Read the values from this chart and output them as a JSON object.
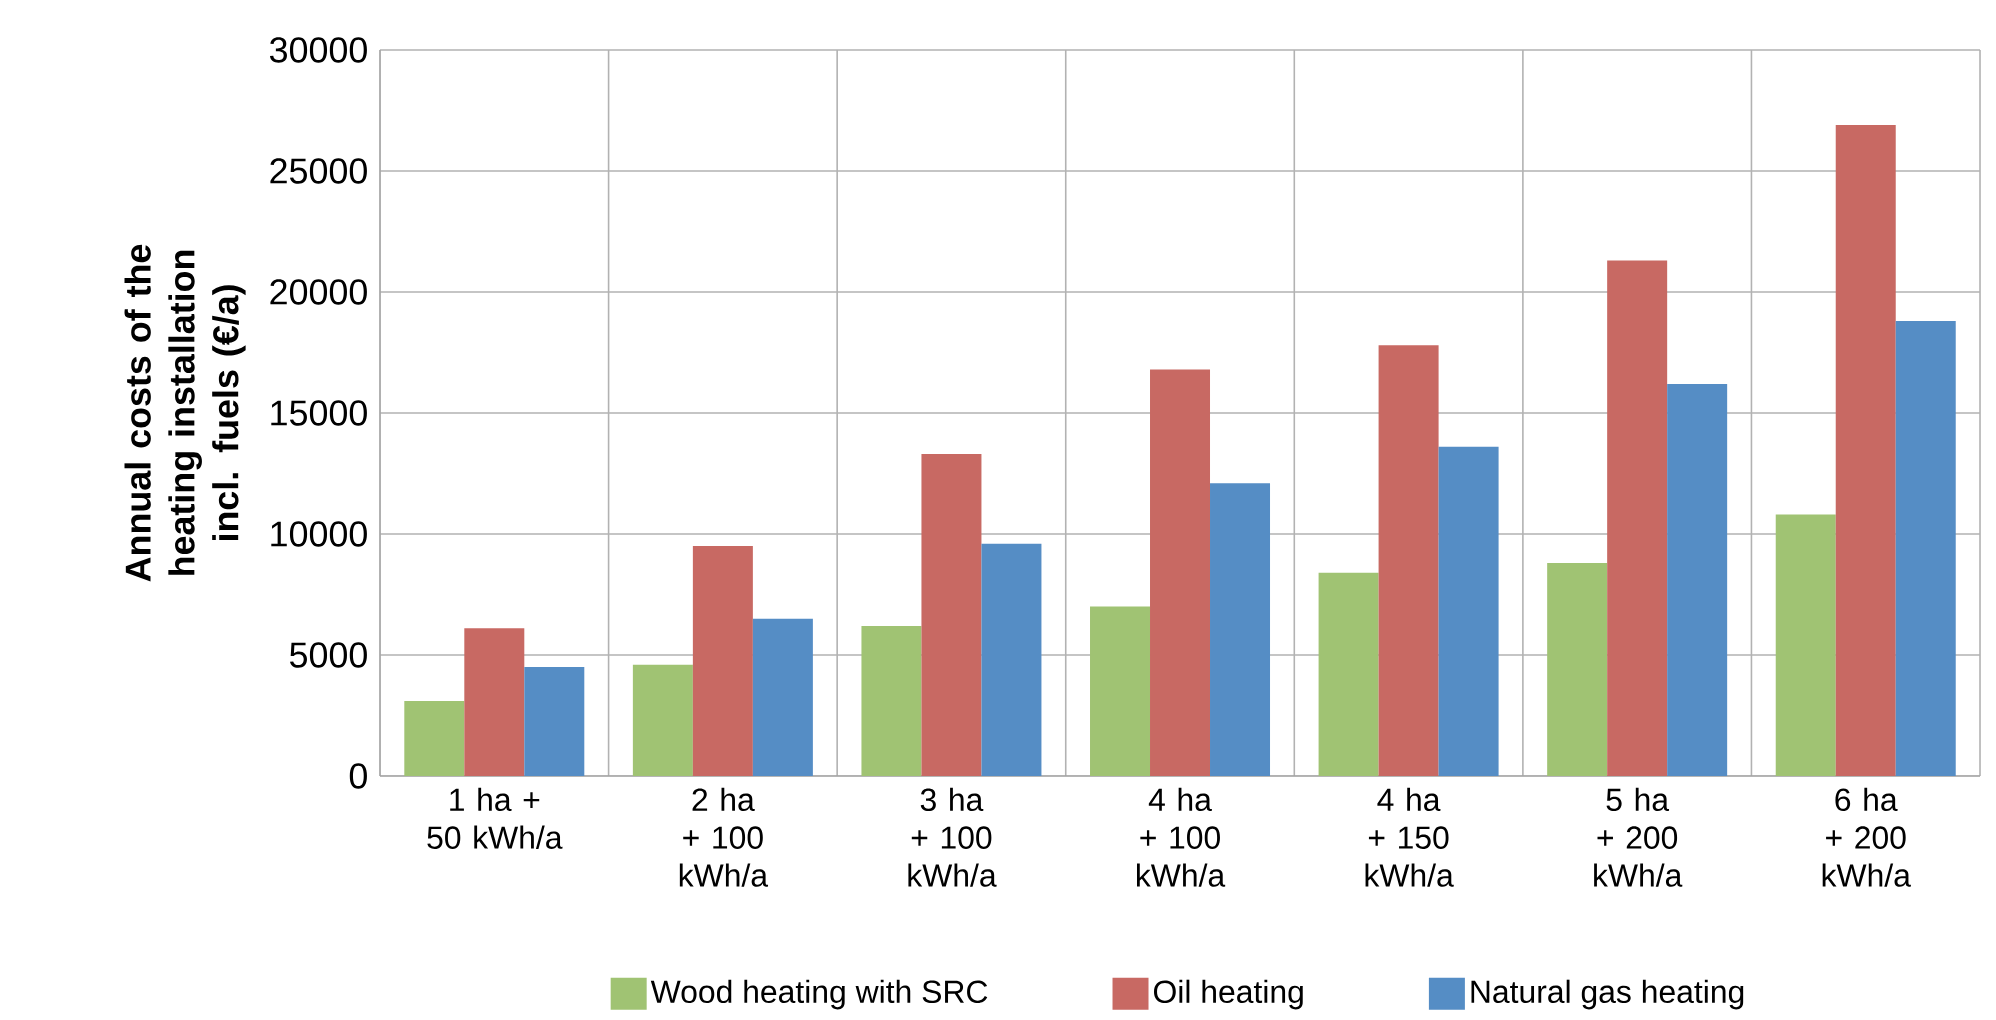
{
  "chart_data": {
    "type": "bar",
    "ylabel": "Annual costs of the heating installation incl. fuels (€/a)",
    "categories": [
      "1 ha + 50 kWh/a",
      "2 ha + 100 kWh/a",
      "3 ha + 100 kWh/a",
      "4 ha + 100 kWh/a",
      "4 ha + 150 kWh/a",
      "5 ha + 200 kWh/a",
      "6 ha + 200 kWh/a"
    ],
    "series": [
      {
        "name": "Wood heating with SRC",
        "color": "#a0c373",
        "values": [
          3100,
          4600,
          6200,
          7000,
          8400,
          8800,
          10800
        ]
      },
      {
        "name": "Oil heating",
        "color": "#c86963",
        "values": [
          6100,
          9500,
          13300,
          16800,
          17800,
          21300,
          26900
        ]
      },
      {
        "name": "Natural gas heating",
        "color": "#558dc5",
        "values": [
          4500,
          6500,
          9600,
          12100,
          13600,
          16200,
          18800
        ]
      }
    ],
    "ylim": [
      0,
      30000
    ],
    "yticks": [
      0,
      5000,
      10000,
      15000,
      20000,
      25000,
      30000
    ],
    "grid": true,
    "legend": "bottom"
  }
}
